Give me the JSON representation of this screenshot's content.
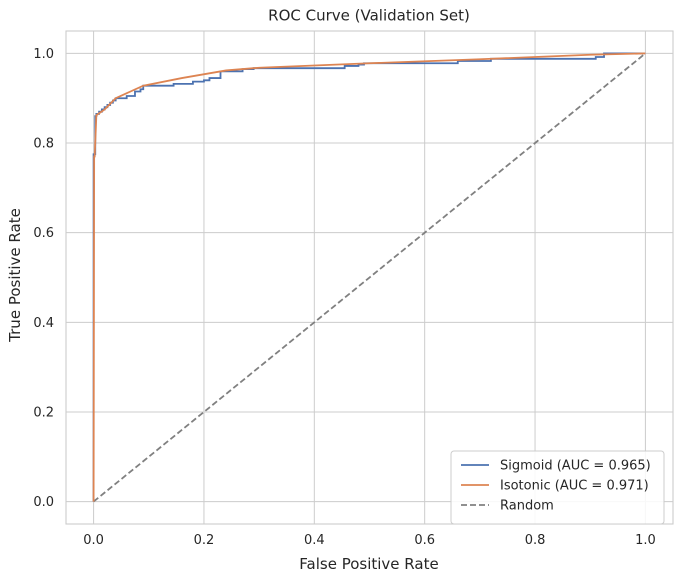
{
  "chart_data": {
    "type": "line",
    "title": "ROC Curve (Validation Set)",
    "xlabel": "False Positive Rate",
    "ylabel": "True Positive Rate",
    "xlim": [
      -0.05,
      1.05
    ],
    "ylim": [
      -0.05,
      1.05
    ],
    "xticks": [
      0.0,
      0.2,
      0.4,
      0.6,
      0.8,
      1.0
    ],
    "yticks": [
      0.0,
      0.2,
      0.4,
      0.6,
      0.8,
      1.0
    ],
    "xtick_labels": [
      "0.0",
      "0.2",
      "0.4",
      "0.6",
      "0.8",
      "1.0"
    ],
    "ytick_labels": [
      "0.0",
      "0.2",
      "0.4",
      "0.6",
      "0.8",
      "1.0"
    ],
    "grid": true,
    "legend_position": "bottom-right",
    "series": [
      {
        "name": "Sigmoid (AUC = 0.965)",
        "color": "#4c72b0",
        "step": true,
        "x": [
          0.0,
          0.0,
          0.003,
          0.003,
          0.005,
          0.005,
          0.01,
          0.01,
          0.015,
          0.015,
          0.02,
          0.02,
          0.025,
          0.025,
          0.03,
          0.03,
          0.035,
          0.035,
          0.04,
          0.04,
          0.06,
          0.06,
          0.075,
          0.075,
          0.085,
          0.085,
          0.09,
          0.09,
          0.145,
          0.145,
          0.18,
          0.18,
          0.2,
          0.2,
          0.21,
          0.21,
          0.23,
          0.23,
          0.27,
          0.27,
          0.29,
          0.29,
          0.455,
          0.455,
          0.48,
          0.48,
          0.49,
          0.49,
          0.66,
          0.66,
          0.72,
          0.72,
          0.91,
          0.91,
          0.925,
          0.925,
          1.0
        ],
        "y": [
          0.0,
          0.775,
          0.775,
          0.86,
          0.86,
          0.865,
          0.865,
          0.87,
          0.87,
          0.875,
          0.875,
          0.88,
          0.88,
          0.885,
          0.885,
          0.89,
          0.89,
          0.895,
          0.895,
          0.9,
          0.9,
          0.905,
          0.905,
          0.915,
          0.915,
          0.92,
          0.92,
          0.928,
          0.928,
          0.932,
          0.932,
          0.937,
          0.937,
          0.94,
          0.94,
          0.945,
          0.945,
          0.96,
          0.96,
          0.965,
          0.965,
          0.967,
          0.967,
          0.972,
          0.972,
          0.975,
          0.975,
          0.978,
          0.978,
          0.983,
          0.983,
          0.988,
          0.988,
          0.992,
          0.992,
          1.0,
          1.0
        ]
      },
      {
        "name": "Isotonic (AUC = 0.971)",
        "color": "#dd8452",
        "step": false,
        "x": [
          0.0,
          0.001,
          0.002,
          0.005,
          0.02,
          0.04,
          0.09,
          0.16,
          0.24,
          0.3,
          0.5,
          0.7,
          0.9,
          1.0
        ],
        "y": [
          0.0,
          0.77,
          0.77,
          0.862,
          0.875,
          0.9,
          0.928,
          0.945,
          0.962,
          0.968,
          0.978,
          0.987,
          0.997,
          1.0
        ]
      },
      {
        "name": "Random",
        "color": "#808080",
        "dashed": true,
        "step": false,
        "x": [
          0.0,
          1.0
        ],
        "y": [
          0.0,
          1.0
        ]
      }
    ]
  }
}
